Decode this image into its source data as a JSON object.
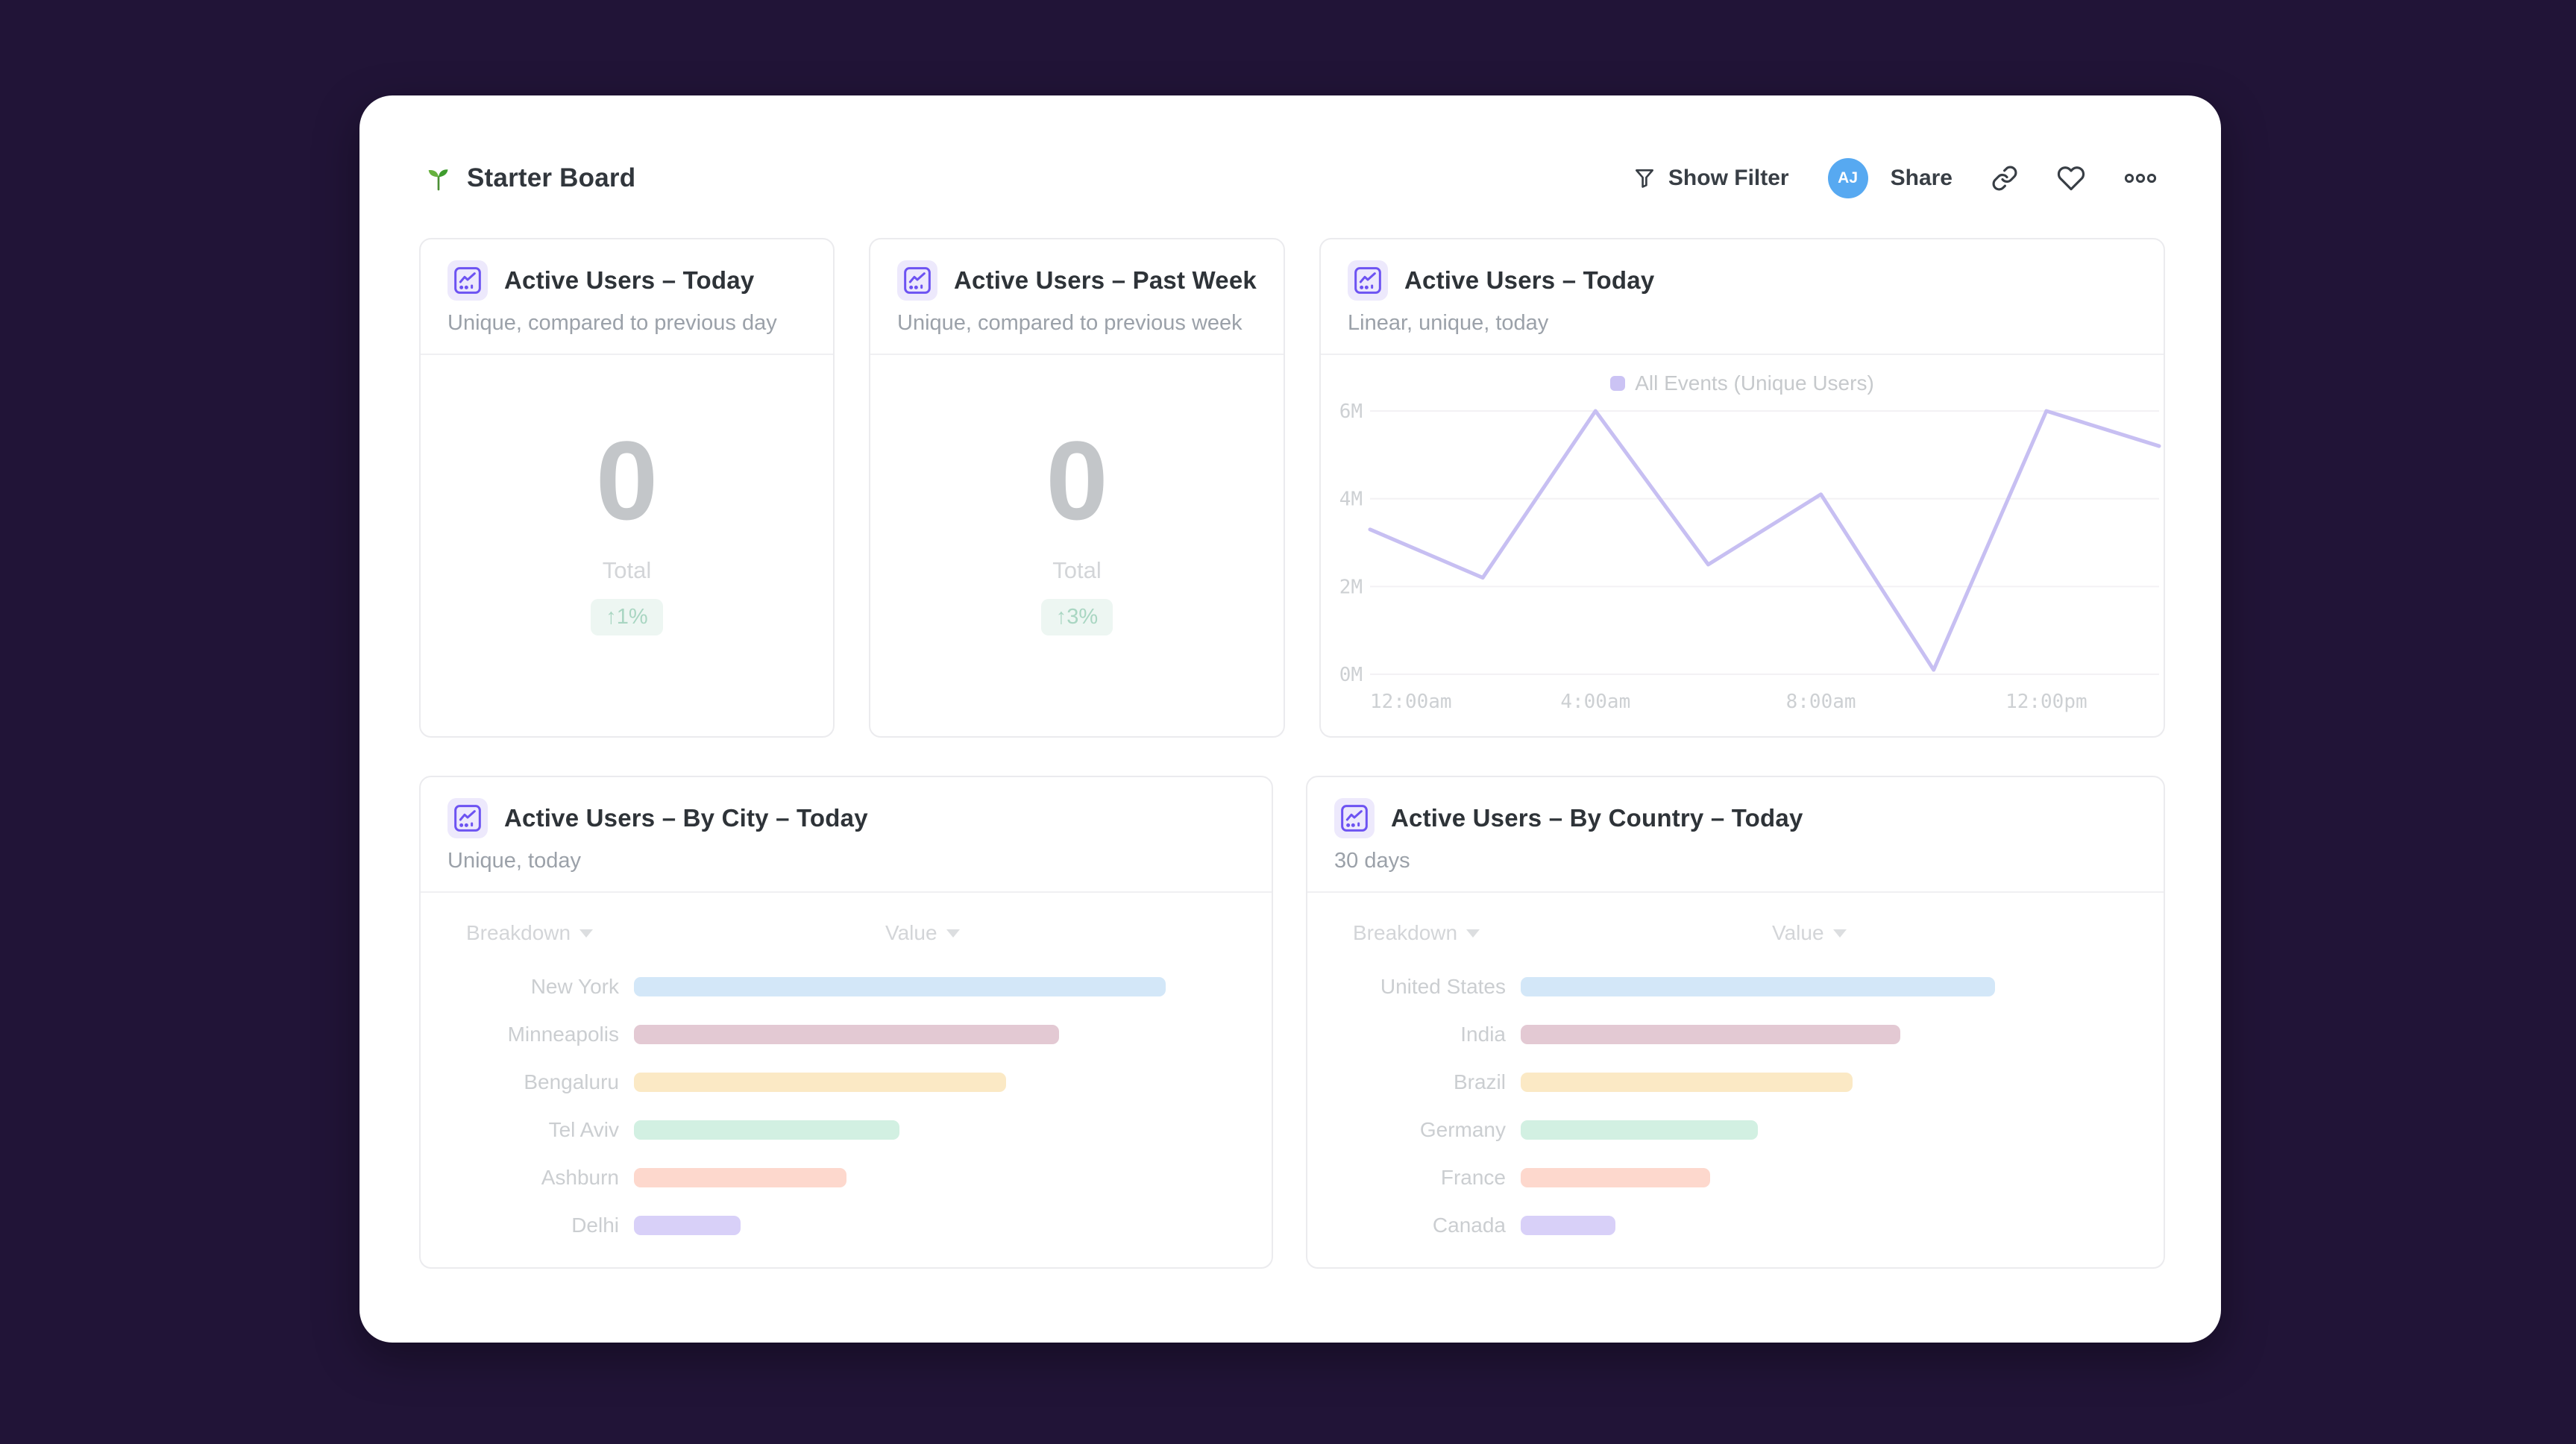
{
  "header": {
    "title": "Starter Board",
    "show_filter_label": "Show Filter",
    "avatar_initials": "AJ",
    "avatar_color": "#57A9F1",
    "share_label": "Share"
  },
  "cards": {
    "today": {
      "title": "Active Users – Today",
      "subtitle": "Unique, compared to previous day",
      "value": "0",
      "value_label": "Total",
      "change_badge": "↑1%"
    },
    "past_week": {
      "title": "Active Users – Past Week",
      "subtitle": "Unique, compared to previous week",
      "value": "0",
      "value_label": "Total",
      "change_badge": "↑3%"
    },
    "today_chart": {
      "title": "Active Users – Today",
      "subtitle": "Linear, unique, today",
      "legend": "All Events (Unique Users)"
    },
    "by_city": {
      "title": "Active Users – By City – Today",
      "subtitle": "Unique, today",
      "col_breakdown": "Breakdown",
      "col_value": "Value"
    },
    "by_country": {
      "title": "Active Users – By Country – Today",
      "subtitle": "30 days",
      "col_breakdown": "Breakdown",
      "col_value": "Value"
    }
  },
  "chart_data": [
    {
      "type": "line",
      "title": "Active Users – Today",
      "series": [
        {
          "name": "All Events (Unique Users)",
          "values": [
            3.3,
            2.2,
            6.0,
            2.5,
            4.1,
            0.1,
            6.0,
            5.2
          ]
        }
      ],
      "x": [
        "12:00am",
        "2:00am",
        "4:00am",
        "6:00am",
        "8:00am",
        "10:00am",
        "12:00pm",
        "2:00pm"
      ],
      "x_tick_labels": [
        "12:00am",
        "4:00am",
        "8:00am",
        "12:00pm"
      ],
      "x_tick_indices": [
        0,
        2,
        4,
        6
      ],
      "y_ticks": [
        0,
        2,
        4,
        6
      ],
      "y_tick_labels": [
        "0M",
        "2M",
        "4M",
        "6M"
      ],
      "ylabel_unit": "millions of unique users",
      "ylim": [
        0,
        6
      ],
      "grid": true,
      "legend_position": "top",
      "line_color": "#C7BFF2",
      "legend_swatch_color": "#CBC3F4"
    },
    {
      "type": "bar",
      "orientation": "horizontal",
      "title": "Active Users – By City – Today",
      "categories": [
        "New York",
        "Minneapolis",
        "Bengaluru",
        "Tel Aviv",
        "Ashburn",
        "Delhi"
      ],
      "values_pct_of_max": [
        100,
        80,
        70,
        50,
        40,
        20
      ],
      "colors": [
        "#D3E7F8",
        "#E3C9D3",
        "#FBE9C5",
        "#D2F0E2",
        "#FDD8CD",
        "#D8D0F8"
      ],
      "track_scale": 0.87
    },
    {
      "type": "bar",
      "orientation": "horizontal",
      "title": "Active Users – By Country – Today",
      "categories": [
        "United States",
        "India",
        "Brazil",
        "Germany",
        "France",
        "Canada"
      ],
      "values_pct_of_max": [
        100,
        80,
        70,
        50,
        40,
        20
      ],
      "colors": [
        "#D3E7F8",
        "#E3C9D3",
        "#FBE9C5",
        "#D2F0E2",
        "#FDD8CD",
        "#D8D0F8"
      ],
      "track_scale": 0.77
    }
  ],
  "colors": {
    "page_background": "#211437",
    "card_icon_purple": "#6D53F2",
    "card_icon_bg": "#EDE9FC",
    "badge_text": "#A9D6C2",
    "badge_bg": "#EDF6F2",
    "header_icon": "#383E45"
  }
}
